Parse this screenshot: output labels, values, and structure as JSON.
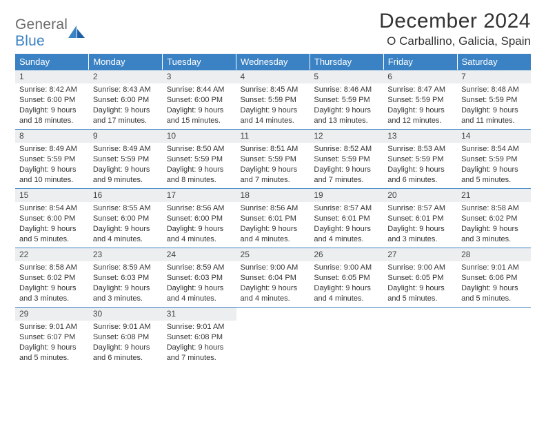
{
  "brand": {
    "top": "General",
    "bottom": "Blue"
  },
  "title": "December 2024",
  "location": "O Carballino, Galicia, Spain",
  "colors": {
    "accent": "#3a82c4",
    "strip_bg": "#eceef0",
    "text": "#333333",
    "logo_gray": "#6b6b6b"
  },
  "dow": [
    "Sunday",
    "Monday",
    "Tuesday",
    "Wednesday",
    "Thursday",
    "Friday",
    "Saturday"
  ],
  "weeks": [
    [
      {
        "n": "1",
        "sr": "8:42 AM",
        "ss": "6:00 PM",
        "dl": "9 hours and 18 minutes."
      },
      {
        "n": "2",
        "sr": "8:43 AM",
        "ss": "6:00 PM",
        "dl": "9 hours and 17 minutes."
      },
      {
        "n": "3",
        "sr": "8:44 AM",
        "ss": "6:00 PM",
        "dl": "9 hours and 15 minutes."
      },
      {
        "n": "4",
        "sr": "8:45 AM",
        "ss": "5:59 PM",
        "dl": "9 hours and 14 minutes."
      },
      {
        "n": "5",
        "sr": "8:46 AM",
        "ss": "5:59 PM",
        "dl": "9 hours and 13 minutes."
      },
      {
        "n": "6",
        "sr": "8:47 AM",
        "ss": "5:59 PM",
        "dl": "9 hours and 12 minutes."
      },
      {
        "n": "7",
        "sr": "8:48 AM",
        "ss": "5:59 PM",
        "dl": "9 hours and 11 minutes."
      }
    ],
    [
      {
        "n": "8",
        "sr": "8:49 AM",
        "ss": "5:59 PM",
        "dl": "9 hours and 10 minutes."
      },
      {
        "n": "9",
        "sr": "8:49 AM",
        "ss": "5:59 PM",
        "dl": "9 hours and 9 minutes."
      },
      {
        "n": "10",
        "sr": "8:50 AM",
        "ss": "5:59 PM",
        "dl": "9 hours and 8 minutes."
      },
      {
        "n": "11",
        "sr": "8:51 AM",
        "ss": "5:59 PM",
        "dl": "9 hours and 7 minutes."
      },
      {
        "n": "12",
        "sr": "8:52 AM",
        "ss": "5:59 PM",
        "dl": "9 hours and 7 minutes."
      },
      {
        "n": "13",
        "sr": "8:53 AM",
        "ss": "5:59 PM",
        "dl": "9 hours and 6 minutes."
      },
      {
        "n": "14",
        "sr": "8:54 AM",
        "ss": "5:59 PM",
        "dl": "9 hours and 5 minutes."
      }
    ],
    [
      {
        "n": "15",
        "sr": "8:54 AM",
        "ss": "6:00 PM",
        "dl": "9 hours and 5 minutes."
      },
      {
        "n": "16",
        "sr": "8:55 AM",
        "ss": "6:00 PM",
        "dl": "9 hours and 4 minutes."
      },
      {
        "n": "17",
        "sr": "8:56 AM",
        "ss": "6:00 PM",
        "dl": "9 hours and 4 minutes."
      },
      {
        "n": "18",
        "sr": "8:56 AM",
        "ss": "6:01 PM",
        "dl": "9 hours and 4 minutes."
      },
      {
        "n": "19",
        "sr": "8:57 AM",
        "ss": "6:01 PM",
        "dl": "9 hours and 4 minutes."
      },
      {
        "n": "20",
        "sr": "8:57 AM",
        "ss": "6:01 PM",
        "dl": "9 hours and 3 minutes."
      },
      {
        "n": "21",
        "sr": "8:58 AM",
        "ss": "6:02 PM",
        "dl": "9 hours and 3 minutes."
      }
    ],
    [
      {
        "n": "22",
        "sr": "8:58 AM",
        "ss": "6:02 PM",
        "dl": "9 hours and 3 minutes."
      },
      {
        "n": "23",
        "sr": "8:59 AM",
        "ss": "6:03 PM",
        "dl": "9 hours and 3 minutes."
      },
      {
        "n": "24",
        "sr": "8:59 AM",
        "ss": "6:03 PM",
        "dl": "9 hours and 4 minutes."
      },
      {
        "n": "25",
        "sr": "9:00 AM",
        "ss": "6:04 PM",
        "dl": "9 hours and 4 minutes."
      },
      {
        "n": "26",
        "sr": "9:00 AM",
        "ss": "6:05 PM",
        "dl": "9 hours and 4 minutes."
      },
      {
        "n": "27",
        "sr": "9:00 AM",
        "ss": "6:05 PM",
        "dl": "9 hours and 5 minutes."
      },
      {
        "n": "28",
        "sr": "9:01 AM",
        "ss": "6:06 PM",
        "dl": "9 hours and 5 minutes."
      }
    ],
    [
      {
        "n": "29",
        "sr": "9:01 AM",
        "ss": "6:07 PM",
        "dl": "9 hours and 5 minutes."
      },
      {
        "n": "30",
        "sr": "9:01 AM",
        "ss": "6:08 PM",
        "dl": "9 hours and 6 minutes."
      },
      {
        "n": "31",
        "sr": "9:01 AM",
        "ss": "6:08 PM",
        "dl": "9 hours and 7 minutes."
      },
      null,
      null,
      null,
      null
    ]
  ],
  "labels": {
    "sunrise": "Sunrise:",
    "sunset": "Sunset:",
    "daylight": "Daylight:"
  }
}
